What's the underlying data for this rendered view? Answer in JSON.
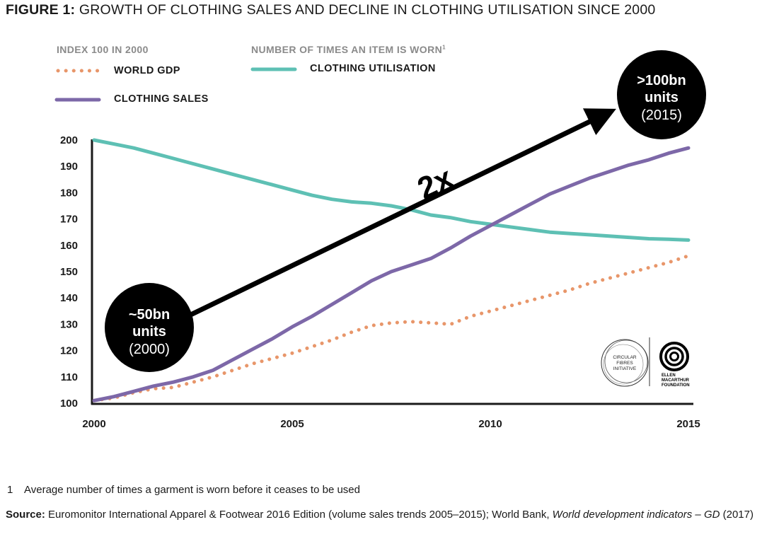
{
  "figure": {
    "title_lead": "FIGURE 1:",
    "title_rest": "GROWTH OF CLOTHING SALES AND DECLINE IN CLOTHING UTILISATION SINCE 2000"
  },
  "legend": {
    "left_heading": "INDEX 100 IN 2000",
    "right_heading": "NUMBER OF TIMES AN ITEM IS WORN",
    "right_heading_sup": "1",
    "items": [
      {
        "label": "WORLD GDP",
        "color": "#e8966a",
        "style": "dotted"
      },
      {
        "label": "CLOTHING SALES",
        "color": "#7d68a8",
        "style": "solid"
      },
      {
        "label": "CLOTHING UTILISATION",
        "color": "#5ec0b4",
        "style": "solid"
      }
    ]
  },
  "chart_data": {
    "type": "line",
    "title": "GROWTH OF CLOTHING SALES AND DECLINE IN CLOTHING UTILISATION SINCE 2000",
    "xlim": [
      2000,
      2015
    ],
    "ylim": [
      100,
      200
    ],
    "x_ticks": [
      "2000",
      "2005",
      "2010",
      "2015"
    ],
    "y_ticks": [
      "100",
      "110",
      "120",
      "130",
      "140",
      "150",
      "160",
      "170",
      "180",
      "190",
      "200"
    ],
    "grid": false,
    "legend_position": "top-left",
    "series": [
      {
        "name": "WORLD GDP",
        "color": "#e8966a",
        "style": "dotted",
        "x": [
          2000,
          2000.5,
          2001,
          2001.5,
          2002,
          2002.5,
          2003,
          2003.5,
          2004,
          2004.5,
          2005,
          2005.5,
          2006,
          2006.5,
          2007,
          2007.5,
          2008,
          2008.5,
          2009,
          2009.5,
          2010,
          2010.5,
          2011,
          2011.5,
          2012,
          2012.5,
          2013,
          2013.5,
          2014,
          2014.5,
          2015
        ],
        "values": [
          101,
          102,
          104,
          105.5,
          106,
          108,
          110,
          112.5,
          115,
          117,
          119,
          121.5,
          124,
          127,
          129.5,
          130.5,
          131,
          130.5,
          130,
          133,
          135,
          137,
          139,
          141,
          143,
          145.5,
          147.5,
          149.5,
          151.5,
          153.5,
          156
        ]
      },
      {
        "name": "CLOTHING SALES",
        "color": "#7d68a8",
        "style": "solid",
        "x": [
          2000,
          2000.5,
          2001,
          2001.5,
          2002,
          2002.5,
          2003,
          2003.5,
          2004,
          2004.5,
          2005,
          2005.5,
          2006,
          2006.5,
          2007,
          2007.5,
          2008,
          2008.5,
          2009,
          2009.5,
          2010,
          2010.5,
          2011,
          2011.5,
          2012,
          2012.5,
          2013,
          2013.5,
          2014,
          2014.5,
          2015
        ],
        "values": [
          101,
          102.5,
          104.5,
          106.5,
          108,
          110,
          112.5,
          116.5,
          120.5,
          124.5,
          129,
          133,
          137.5,
          142,
          146.5,
          150,
          152.5,
          155,
          159,
          163.5,
          167.5,
          171.5,
          175.5,
          179.5,
          182.5,
          185.5,
          188,
          190.5,
          192.5,
          195,
          197
        ]
      },
      {
        "name": "CLOTHING UTILISATION",
        "color": "#5ec0b4",
        "style": "solid",
        "x": [
          2000,
          2000.5,
          2001,
          2001.5,
          2002,
          2002.5,
          2003,
          2003.5,
          2004,
          2004.5,
          2005,
          2005.5,
          2006,
          2006.5,
          2007,
          2007.5,
          2008,
          2008.5,
          2009,
          2009.5,
          2010,
          2010.5,
          2011,
          2011.5,
          2012,
          2012.5,
          2013,
          2013.5,
          2014,
          2014.5,
          2015
        ],
        "values": [
          200,
          198.5,
          197,
          195,
          193,
          191,
          189,
          187,
          185,
          183,
          181,
          179,
          177.5,
          176.5,
          176,
          175,
          173.5,
          171.5,
          170.5,
          169,
          168,
          167,
          166,
          165,
          164.5,
          164,
          163.5,
          163,
          162.5,
          162.3,
          162
        ]
      }
    ],
    "annotations": {
      "start_badge": {
        "line1": "~50bn",
        "line2": "units",
        "line3": "(2000)"
      },
      "end_badge": {
        "line1": ">100bn",
        "line2": "units",
        "line3": "(2015)"
      },
      "arrow_label": "2x"
    }
  },
  "logos": {
    "left": "CIRCULAR FIBRES INITIATIVE",
    "right": "ELLEN MACARTHUR FOUNDATION"
  },
  "footnote": {
    "number": "1",
    "text": "Average number of times a garment is worn before it ceases to be used"
  },
  "source": {
    "label": "Source:",
    "text": "Euromonitor International Apparel & Footwear 2016 Edition (volume sales trends 2005–2015); World Bank,",
    "italic": "World development indicators – GD",
    "tail": "(2017)"
  }
}
